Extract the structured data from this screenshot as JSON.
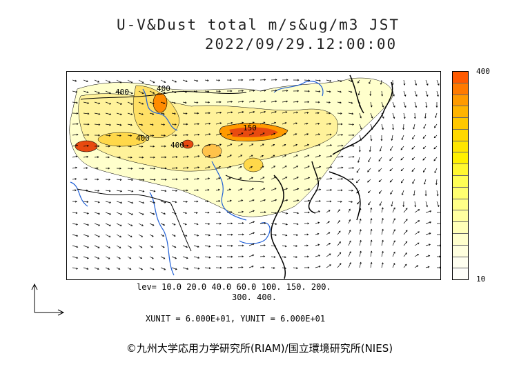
{
  "title": {
    "line1": "U-V&Dust total m/s&ug/m3 JST",
    "line2": "2022/09/29.12:00:00"
  },
  "map": {
    "contour_labels": [
      "400",
      "400",
      "400",
      "400",
      "150"
    ],
    "land_color": "#ffffff",
    "coast_color": "#000000",
    "river_color": "#1f5fd6"
  },
  "colorbar": {
    "max_label": "400",
    "min_label": "10",
    "colors": [
      "#ff5a00",
      "#ff7a00",
      "#ff9a00",
      "#ffb400",
      "#ffc800",
      "#ffd800",
      "#ffe600",
      "#fff000",
      "#fff830",
      "#ffff55",
      "#ffff70",
      "#ffff88",
      "#ffffa0",
      "#ffffb8",
      "#ffffcc",
      "#ffffde",
      "#fffff0",
      "#fffffa"
    ]
  },
  "levels": {
    "line1": "lev= 10.0 20.0 40.0 60.0 100. 150. 200.",
    "line2": "300. 400."
  },
  "units": "XUNIT = 6.000E+01, YUNIT = 6.000E+01",
  "credit": "©九州大学応用力学研究所(RIAM)/国立環境研究所(NIES)"
}
